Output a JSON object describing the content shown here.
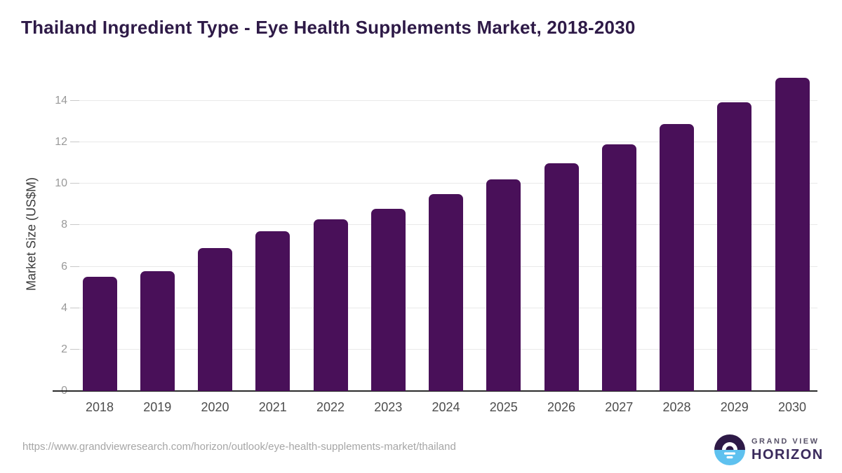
{
  "header": {
    "title": "Thailand Ingredient Type - Eye Health Supplements Market, 2018-2030"
  },
  "chart_data": {
    "type": "bar",
    "title": "Thailand Ingredient Type - Eye Health Supplements Market, 2018-2030",
    "categories": [
      "2018",
      "2019",
      "2020",
      "2021",
      "2022",
      "2023",
      "2024",
      "2025",
      "2026",
      "2027",
      "2028",
      "2029",
      "2030"
    ],
    "values": [
      5.5,
      5.8,
      6.9,
      7.7,
      8.3,
      8.8,
      9.5,
      10.2,
      11.0,
      11.9,
      12.9,
      13.95,
      15.1
    ],
    "xlabel": "",
    "ylabel": "Market Size (US$M)",
    "ylim": [
      0,
      15.15
    ],
    "yticks": [
      0,
      2,
      4,
      6,
      8,
      10,
      12,
      14
    ],
    "grid": true,
    "legend_position": "none",
    "bar_color": "#491059"
  },
  "colors": {
    "title_text": "#2e1a47",
    "bar": "#491059",
    "gridline": "#e9e9e9",
    "axis_line": "#2b2b2b",
    "y_tick_text": "#999999",
    "x_tick_text": "#4d4d4d",
    "url_text": "#a6a6a6",
    "logo_purple": "#2e1a47",
    "logo_blue": "#5ec1ef"
  },
  "footer": {
    "source_url": "https://www.grandviewresearch.com/horizon/outlook/eye-health-supplements-market/thailand",
    "logo": {
      "line1": "GRAND VIEW",
      "line2": "HORIZON"
    }
  }
}
